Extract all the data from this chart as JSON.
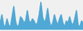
{
  "values": [
    1.5,
    3.5,
    1.0,
    0.5,
    2.5,
    1.0,
    0.5,
    3.0,
    5.5,
    2.0,
    0.5,
    1.0,
    3.0,
    2.5,
    1.5,
    2.0,
    4.5,
    2.0,
    1.5,
    2.5,
    2.0,
    1.0,
    1.5,
    3.5,
    6.5,
    3.0,
    1.5,
    2.5,
    5.0,
    2.0,
    0.5,
    1.5,
    3.5,
    2.0,
    1.0,
    2.5,
    3.5,
    1.5,
    0.5,
    2.0,
    1.5,
    3.0,
    1.5,
    1.0,
    2.5,
    4.5,
    1.0,
    0.5,
    2.0,
    1.5
  ],
  "baseline": 0.0,
  "line_color": "#4fa8d5",
  "fill_color": "#4fa8d5",
  "fill_alpha": 1.0,
  "background_color": "#f0f0f0",
  "linewidth": 0.6,
  "ylim_min": -0.5,
  "ylim_max": 7.0
}
